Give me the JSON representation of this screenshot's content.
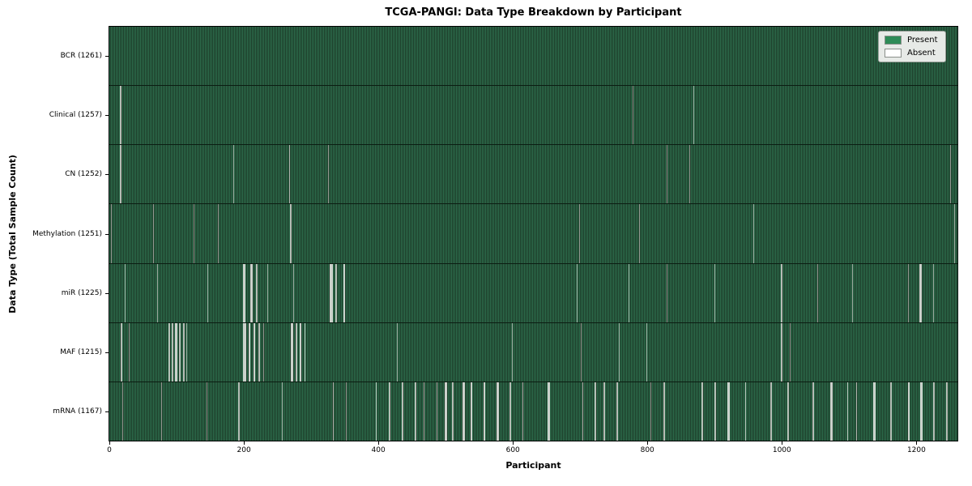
{
  "chart_data": {
    "type": "heatmap",
    "title": "TCGA-PANGI: Data Type Breakdown by Participant",
    "xlabel": "Participant",
    "ylabel": "Data Type (Total Sample Count)",
    "x_range": [
      0,
      1261
    ],
    "x_ticks": [
      0,
      200,
      400,
      600,
      800,
      1000,
      1200
    ],
    "grid": false,
    "legend_position": "upper right",
    "legend": [
      {
        "label": "Present",
        "color": "#2e8b57"
      },
      {
        "label": "Absent",
        "color": "#ffffff"
      }
    ],
    "rows": [
      {
        "label": "BCR (1261)",
        "data_type": "BCR",
        "present_count": 1261,
        "absent_count": 0,
        "absent_runs": []
      },
      {
        "label": "Clinical (1257)",
        "data_type": "Clinical",
        "present_count": 1257,
        "absent_count": 4,
        "absent_runs": [
          [
            16,
            2
          ],
          [
            778,
            1
          ],
          [
            868,
            1
          ]
        ]
      },
      {
        "label": "CN (1252)",
        "data_type": "CN",
        "present_count": 1252,
        "absent_count": 9,
        "absent_runs": [
          [
            16,
            2
          ],
          [
            184,
            1
          ],
          [
            267,
            2
          ],
          [
            325,
            1
          ],
          [
            829,
            1
          ],
          [
            862,
            1
          ],
          [
            1250,
            1
          ]
        ]
      },
      {
        "label": "Methylation (1251)",
        "data_type": "Methylation",
        "present_count": 1251,
        "absent_count": 10,
        "absent_runs": [
          [
            2,
            1
          ],
          [
            65,
            1
          ],
          [
            125,
            1
          ],
          [
            161,
            1
          ],
          [
            269,
            2
          ],
          [
            698,
            1
          ],
          [
            788,
            1
          ],
          [
            957,
            1
          ],
          [
            1256,
            1
          ]
        ]
      },
      {
        "label": "miR (1225)",
        "data_type": "miR",
        "present_count": 1225,
        "absent_count": 36,
        "absent_runs": [
          [
            23,
            1
          ],
          [
            71,
            1
          ],
          [
            146,
            1
          ],
          [
            199,
            3
          ],
          [
            210,
            3
          ],
          [
            218,
            2
          ],
          [
            235,
            1
          ],
          [
            273,
            1
          ],
          [
            328,
            4
          ],
          [
            336,
            2
          ],
          [
            348,
            3
          ],
          [
            695,
            1
          ],
          [
            772,
            1
          ],
          [
            829,
            1
          ],
          [
            900,
            1
          ],
          [
            999,
            2
          ],
          [
            1053,
            1
          ],
          [
            1104,
            1
          ],
          [
            1187,
            1
          ],
          [
            1204,
            4
          ],
          [
            1225,
            1
          ]
        ]
      },
      {
        "label": "MAF (1215)",
        "data_type": "MAF",
        "present_count": 1215,
        "absent_count": 46,
        "absent_runs": [
          [
            17,
            2
          ],
          [
            29,
            1
          ],
          [
            88,
            2
          ],
          [
            93,
            2
          ],
          [
            98,
            3
          ],
          [
            104,
            2
          ],
          [
            110,
            2
          ],
          [
            114,
            1
          ],
          [
            199,
            4
          ],
          [
            207,
            3
          ],
          [
            214,
            3
          ],
          [
            222,
            2
          ],
          [
            229,
            1
          ],
          [
            270,
            3
          ],
          [
            277,
            2
          ],
          [
            283,
            3
          ],
          [
            290,
            2
          ],
          [
            427,
            1
          ],
          [
            599,
            1
          ],
          [
            701,
            1
          ],
          [
            757,
            1
          ],
          [
            798,
            1
          ],
          [
            999,
            2
          ],
          [
            1012,
            1
          ]
        ]
      },
      {
        "label": "mRNA (1167)",
        "data_type": "mRNA",
        "present_count": 1167,
        "absent_count": 94,
        "absent_runs": [
          [
            19,
            1
          ],
          [
            77,
            1
          ],
          [
            145,
            1
          ],
          [
            192,
            2
          ],
          [
            256,
            1
          ],
          [
            332,
            2
          ],
          [
            352,
            1
          ],
          [
            396,
            2
          ],
          [
            416,
            2
          ],
          [
            435,
            2
          ],
          [
            454,
            2
          ],
          [
            467,
            2
          ],
          [
            486,
            2
          ],
          [
            499,
            3
          ],
          [
            510,
            2
          ],
          [
            525,
            4
          ],
          [
            537,
            3
          ],
          [
            556,
            3
          ],
          [
            576,
            3
          ],
          [
            595,
            2
          ],
          [
            614,
            2
          ],
          [
            652,
            3
          ],
          [
            703,
            2
          ],
          [
            722,
            2
          ],
          [
            735,
            2
          ],
          [
            754,
            2
          ],
          [
            805,
            1
          ],
          [
            824,
            2
          ],
          [
            881,
            2
          ],
          [
            900,
            2
          ],
          [
            919,
            3
          ],
          [
            945,
            2
          ],
          [
            983,
            2
          ],
          [
            1008,
            2
          ],
          [
            1046,
            2
          ],
          [
            1072,
            3
          ],
          [
            1097,
            2
          ],
          [
            1110,
            2
          ],
          [
            1136,
            3
          ],
          [
            1161,
            2
          ],
          [
            1187,
            3
          ],
          [
            1206,
            3
          ],
          [
            1225,
            2
          ],
          [
            1244,
            2
          ]
        ]
      }
    ]
  }
}
